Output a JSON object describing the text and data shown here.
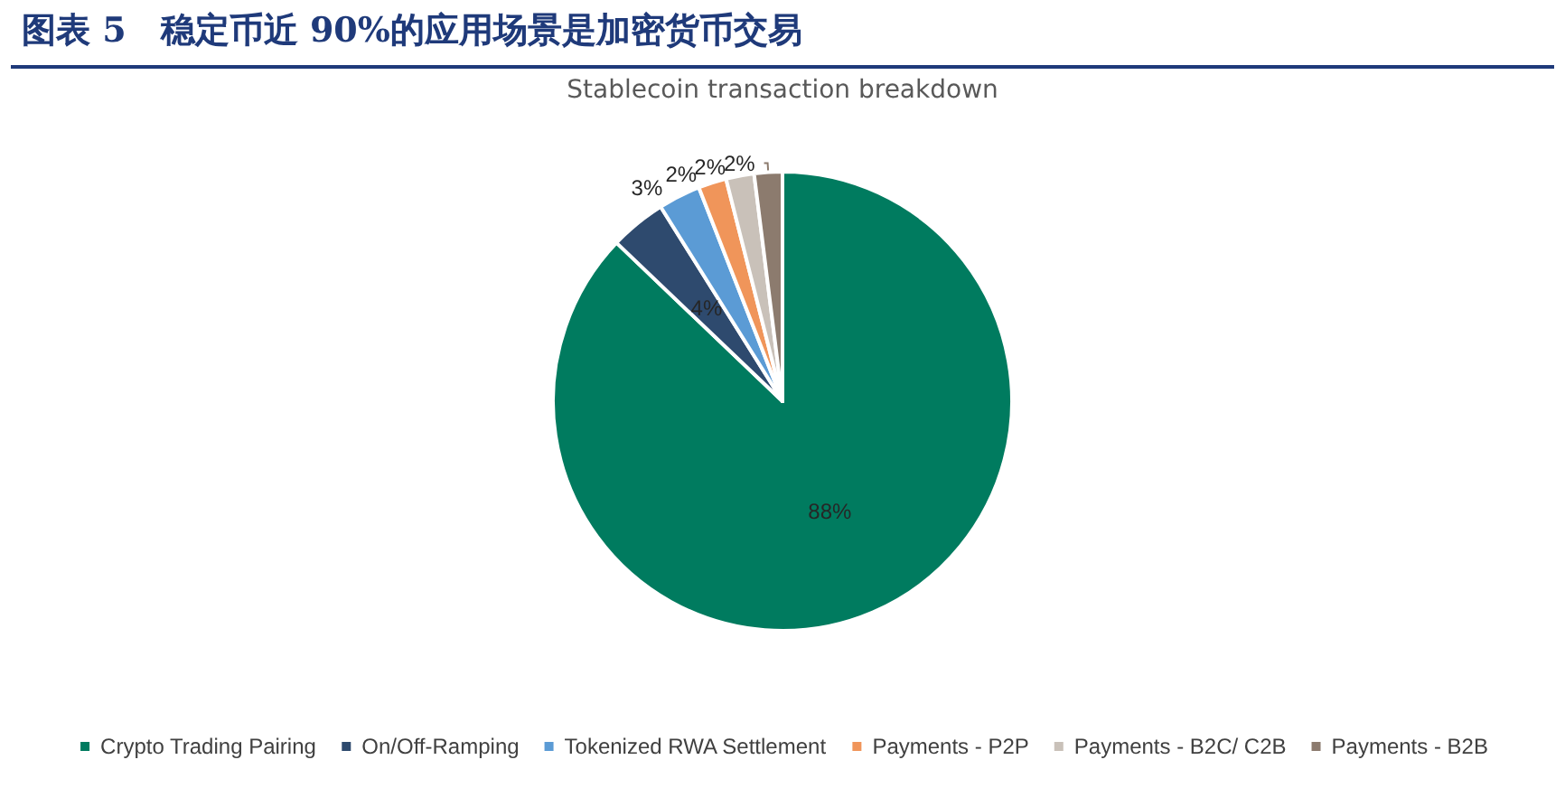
{
  "chart_data": {
    "type": "pie",
    "title": "图表 5　稳定币近 90%的应用场景是加密货币交易",
    "subtitle": "Stablecoin transaction breakdown",
    "categories": [
      "Crypto Trading Pairing",
      "On/Off-Ramping",
      "Tokenized RWA Settlement",
      "Payments - P2P",
      "Payments - B2C/ C2B",
      "Payments - B2B"
    ],
    "values": [
      88,
      4,
      3,
      2,
      2,
      2
    ],
    "colors": [
      "#007b5f",
      "#2e4a6e",
      "#5b9bd5",
      "#f0955a",
      "#c9c1b9",
      "#8c7b6e"
    ],
    "value_labels": [
      "88%",
      "4%",
      "3%",
      "2%",
      "2%",
      "2%"
    ],
    "legend": "bottom"
  }
}
